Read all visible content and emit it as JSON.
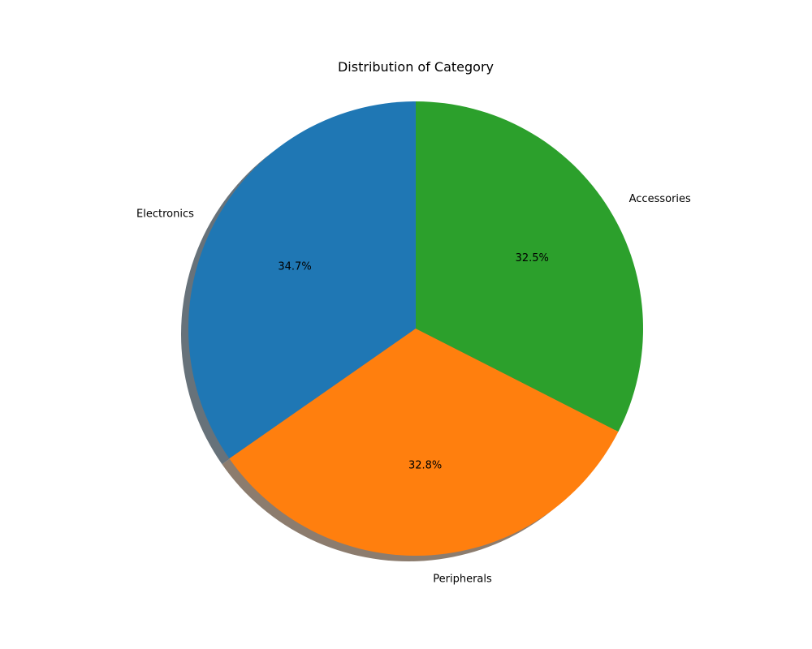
{
  "chart_data": {
    "type": "pie",
    "title": "Distribution of Category",
    "categories": [
      "Electronics",
      "Peripherals",
      "Accessories"
    ],
    "values": [
      34.7,
      32.8,
      32.5
    ],
    "percent_labels": [
      "34.7%",
      "32.8%",
      "32.5%"
    ],
    "colors": [
      "#1f77b4",
      "#ff7f0e",
      "#2ca02c"
    ],
    "start_angle_deg": 90,
    "direction": "counterclockwise",
    "shadow": true,
    "legend": "none"
  }
}
